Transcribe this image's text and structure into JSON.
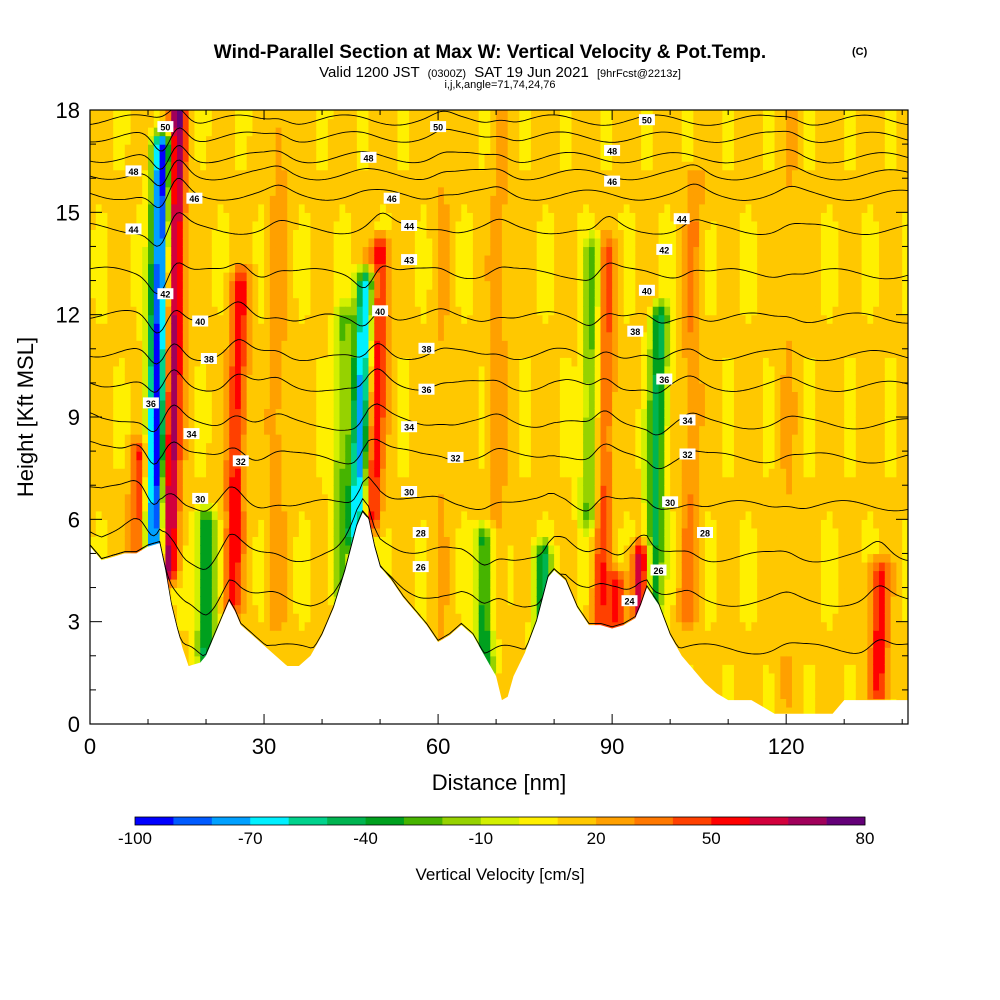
{
  "chart_data": {
    "type": "heatmap",
    "title": "Wind-Parallel Section at Max W: Vertical Velocity & Pot.Temp.",
    "title_mark": "(C)",
    "subtitle": {
      "valid": "Valid 1200 JST",
      "utc": "(0300Z)",
      "date": "SAT 19 Jun 2021",
      "fcst": "[9hrFcst@2213z]"
    },
    "subtitle2": "i,j,k,angle=71,74,24,76",
    "xlabel": "Distance [nm]",
    "ylabel": "Height [Kft MSL]",
    "xlim": [
      0,
      141
    ],
    "ylim": [
      0,
      18
    ],
    "xticks": [
      "0",
      "30",
      "60",
      "90",
      "120"
    ],
    "yticks": [
      "0",
      "3",
      "6",
      "9",
      "12",
      "15",
      "18"
    ],
    "colorbar": {
      "label": "Vertical Velocity [cm/s]",
      "ticks": [
        "-100",
        "-70",
        "-40",
        "-10",
        "20",
        "50",
        "80"
      ],
      "levels": [
        -100,
        -90,
        -80,
        -70,
        -60,
        -50,
        -40,
        -30,
        -20,
        -10,
        0,
        10,
        20,
        30,
        40,
        50,
        60,
        70,
        80
      ],
      "colors": [
        "#0000ff",
        "#005aff",
        "#00a0ff",
        "#00f0ff",
        "#00d28c",
        "#00b450",
        "#00a01e",
        "#46b400",
        "#96d200",
        "#d2f000",
        "#fff000",
        "#ffc800",
        "#ffa000",
        "#ff7800",
        "#ff4000",
        "#ff0000",
        "#d2003c",
        "#a0005a",
        "#640078"
      ]
    },
    "terrain": [
      [
        0,
        5.2
      ],
      [
        2,
        4.8
      ],
      [
        4,
        4.9
      ],
      [
        6,
        5.0
      ],
      [
        8,
        5.0
      ],
      [
        10,
        5.2
      ],
      [
        12,
        5.3
      ],
      [
        13,
        4.5
      ],
      [
        14,
        3.5
      ],
      [
        15,
        2.8
      ],
      [
        16,
        2.2
      ],
      [
        17,
        1.7
      ],
      [
        19,
        1.8
      ],
      [
        20,
        2.0
      ],
      [
        21,
        2.4
      ],
      [
        22,
        2.8
      ],
      [
        23,
        3.2
      ],
      [
        24,
        3.6
      ],
      [
        25,
        3.3
      ],
      [
        26,
        2.9
      ],
      [
        28,
        2.6
      ],
      [
        30,
        2.3
      ],
      [
        32,
        2.0
      ],
      [
        34,
        1.7
      ],
      [
        36,
        1.7
      ],
      [
        38,
        2.0
      ],
      [
        40,
        2.6
      ],
      [
        42,
        3.4
      ],
      [
        44,
        4.5
      ],
      [
        46,
        5.8
      ],
      [
        47,
        6.2
      ],
      [
        48,
        6.0
      ],
      [
        49,
        5.2
      ],
      [
        50,
        4.6
      ],
      [
        52,
        4.2
      ],
      [
        54,
        3.7
      ],
      [
        56,
        3.3
      ],
      [
        58,
        2.9
      ],
      [
        60,
        2.4
      ],
      [
        62,
        2.6
      ],
      [
        64,
        2.9
      ],
      [
        66,
        2.6
      ],
      [
        68,
        2.0
      ],
      [
        70,
        1.4
      ],
      [
        71,
        0.7
      ],
      [
        72,
        0.8
      ],
      [
        73,
        1.4
      ],
      [
        75,
        2.1
      ],
      [
        77,
        3.0
      ],
      [
        79,
        4.3
      ],
      [
        80,
        4.5
      ],
      [
        82,
        4.2
      ],
      [
        84,
        3.4
      ],
      [
        86,
        2.9
      ],
      [
        88,
        2.9
      ],
      [
        90,
        2.8
      ],
      [
        92,
        2.9
      ],
      [
        94,
        3.1
      ],
      [
        95,
        3.5
      ],
      [
        96,
        4.0
      ],
      [
        98,
        3.5
      ],
      [
        100,
        2.6
      ],
      [
        102,
        2.0
      ],
      [
        104,
        1.6
      ],
      [
        106,
        1.2
      ],
      [
        108,
        0.9
      ],
      [
        110,
        0.7
      ],
      [
        112,
        0.7
      ],
      [
        114,
        0.7
      ],
      [
        116,
        0.5
      ],
      [
        118,
        0.3
      ],
      [
        120,
        0.3
      ],
      [
        124,
        0.3
      ],
      [
        128,
        0.3
      ],
      [
        130,
        0.7
      ],
      [
        134,
        0.7
      ],
      [
        138,
        0.7
      ],
      [
        141,
        0.7
      ]
    ],
    "updrafts": [
      {
        "x": 13.5,
        "w": 80,
        "z0": 4.5,
        "z1": 18,
        "tilt": 0.12
      },
      {
        "x": 8.5,
        "w": 50,
        "z0": 4.8,
        "z1": 8,
        "tilt": 0.0
      },
      {
        "x": 24.5,
        "w": 55,
        "z0": 3.5,
        "z1": 13,
        "tilt": 0.15
      },
      {
        "x": 48.5,
        "w": 60,
        "z0": 6.0,
        "z1": 14,
        "tilt": 0.2
      },
      {
        "x": 88,
        "w": 45,
        "z0": 2.8,
        "z1": 14,
        "tilt": 0.1
      },
      {
        "x": 95,
        "w": 70,
        "z0": 3.0,
        "z1": 5.0,
        "tilt": 0.0
      },
      {
        "x": 91,
        "w": 50,
        "z0": 2.8,
        "z1": 4.2,
        "tilt": 0.0
      },
      {
        "x": 103,
        "w": 30,
        "z0": 3.0,
        "z1": 16,
        "tilt": 0.1
      },
      {
        "x": 136,
        "w": 55,
        "z0": 1.0,
        "z1": 4.5,
        "tilt": 0.0
      },
      {
        "x": 32,
        "w": 25,
        "z0": 3.0,
        "z1": 18,
        "tilt": 0.05
      },
      {
        "x": 60,
        "w": 20,
        "z0": 2.5,
        "z1": 18,
        "tilt": 0.05
      },
      {
        "x": 70,
        "w": 25,
        "z0": 3.0,
        "z1": 18,
        "tilt": 0.05
      },
      {
        "x": 120,
        "w": 20,
        "z0": 1.0,
        "z1": 18,
        "tilt": 0.05
      }
    ],
    "downdrafts": [
      {
        "x": 11,
        "w": -100,
        "z0": 4.5,
        "z1": 17,
        "tilt": 0.12
      },
      {
        "x": 20,
        "w": -45,
        "z0": 2.0,
        "z1": 6.0,
        "tilt": 0.0
      },
      {
        "x": 46,
        "w": -75,
        "z0": 5.5,
        "z1": 13,
        "tilt": 0.2
      },
      {
        "x": 68,
        "w": -40,
        "z0": 1.5,
        "z1": 5.5,
        "tilt": 0.0
      },
      {
        "x": 78,
        "w": -40,
        "z0": 2.5,
        "z1": 5.0,
        "tilt": 0.0
      },
      {
        "x": 97,
        "w": -45,
        "z0": 3.5,
        "z1": 12,
        "tilt": 0.15
      },
      {
        "x": 86,
        "w": -25,
        "z0": 6.0,
        "z1": 14,
        "tilt": 0.1
      },
      {
        "x": 43,
        "w": -20,
        "z0": 4.0,
        "z1": 12,
        "tilt": 0.1
      }
    ],
    "theta_contours": [
      {
        "value": 24,
        "z": 2.2
      },
      {
        "value": 26,
        "z": 3.6
      },
      {
        "value": 28,
        "z": 4.9
      },
      {
        "value": 30,
        "z": 6.4
      },
      {
        "value": 32,
        "z": 7.8
      },
      {
        "value": 34,
        "z": 8.8
      },
      {
        "value": 36,
        "z": 9.9
      },
      {
        "value": 38,
        "z": 10.8
      },
      {
        "value": 40,
        "z": 11.9
      },
      {
        "value": 42,
        "z": 13.2
      },
      {
        "value": 44,
        "z": 14.5
      },
      {
        "value": 46,
        "z": 15.5
      },
      {
        "value": 48,
        "z": 16.6
      },
      {
        "value": 50,
        "z": 17.7
      }
    ],
    "contour_labels": [
      {
        "text": "50",
        "x": 13,
        "z": 17.5
      },
      {
        "text": "50",
        "x": 60,
        "z": 17.5
      },
      {
        "text": "50",
        "x": 96,
        "z": 17.7
      },
      {
        "text": "48",
        "x": 7.5,
        "z": 16.2
      },
      {
        "text": "48",
        "x": 48,
        "z": 16.6
      },
      {
        "text": "48",
        "x": 90,
        "z": 16.8
      },
      {
        "text": "46",
        "x": 18,
        "z": 15.4
      },
      {
        "text": "46",
        "x": 52,
        "z": 15.4
      },
      {
        "text": "46",
        "x": 90,
        "z": 15.9
      },
      {
        "text": "44",
        "x": 7.5,
        "z": 14.5
      },
      {
        "text": "44",
        "x": 55,
        "z": 14.6
      },
      {
        "text": "44",
        "x": 102,
        "z": 14.8
      },
      {
        "text": "43",
        "x": 55,
        "z": 13.6
      },
      {
        "text": "42",
        "x": 13,
        "z": 12.6
      },
      {
        "text": "42",
        "x": 99,
        "z": 13.9
      },
      {
        "text": "40",
        "x": 19,
        "z": 11.8
      },
      {
        "text": "40",
        "x": 50,
        "z": 12.1
      },
      {
        "text": "40",
        "x": 96,
        "z": 12.7
      },
      {
        "text": "38",
        "x": 20.5,
        "z": 10.7
      },
      {
        "text": "38",
        "x": 58,
        "z": 11.0
      },
      {
        "text": "38",
        "x": 94,
        "z": 11.5
      },
      {
        "text": "36",
        "x": 10.5,
        "z": 9.4
      },
      {
        "text": "36",
        "x": 58,
        "z": 9.8
      },
      {
        "text": "36",
        "x": 99,
        "z": 10.1
      },
      {
        "text": "34",
        "x": 17.5,
        "z": 8.5
      },
      {
        "text": "34",
        "x": 55,
        "z": 8.7
      },
      {
        "text": "34",
        "x": 103,
        "z": 8.9
      },
      {
        "text": "32",
        "x": 26,
        "z": 7.7
      },
      {
        "text": "32",
        "x": 63,
        "z": 7.8
      },
      {
        "text": "32",
        "x": 103,
        "z": 7.9
      },
      {
        "text": "30",
        "x": 19,
        "z": 6.6
      },
      {
        "text": "30",
        "x": 55,
        "z": 6.8
      },
      {
        "text": "30",
        "x": 100,
        "z": 6.5
      },
      {
        "text": "28",
        "x": 57,
        "z": 5.6
      },
      {
        "text": "28",
        "x": 106,
        "z": 5.6
      },
      {
        "text": "26",
        "x": 57,
        "z": 4.6
      },
      {
        "text": "26",
        "x": 98,
        "z": 4.5
      },
      {
        "text": "24",
        "x": 93,
        "z": 3.6
      }
    ]
  }
}
